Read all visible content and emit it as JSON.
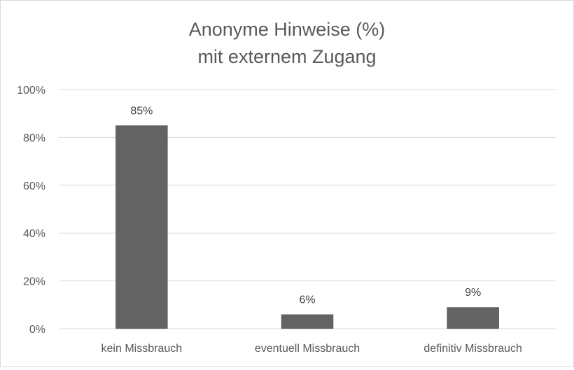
{
  "chart_data": {
    "type": "bar",
    "title_lines": [
      "Anonyme Hinweise (%)",
      "mit externem Zugang"
    ],
    "categories": [
      "kein Missbrauch",
      "eventuell Missbrauch",
      "definitiv Missbrauch"
    ],
    "values": [
      85,
      6,
      9
    ],
    "data_labels": [
      "85%",
      "6%",
      "9%"
    ],
    "y_ticks": [
      0,
      20,
      40,
      60,
      80,
      100
    ],
    "y_tick_labels": [
      "0%",
      "20%",
      "40%",
      "60%",
      "80%",
      "100%"
    ],
    "ylim": [
      0,
      100
    ],
    "xlabel": "",
    "ylabel": "",
    "grid": true,
    "legend": "none",
    "bar_color": "#636363"
  }
}
